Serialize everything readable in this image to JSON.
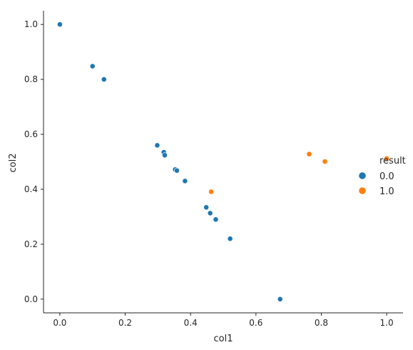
{
  "chart_data": {
    "type": "scatter",
    "title": "",
    "xlabel": "col1",
    "ylabel": "col2",
    "xlim": [
      -0.05,
      1.05
    ],
    "ylim": [
      -0.05,
      1.05
    ],
    "xticks": [
      "0.0",
      "0.2",
      "0.4",
      "0.6",
      "0.8",
      "1.0"
    ],
    "yticks": [
      "0.0",
      "0.2",
      "0.4",
      "0.6",
      "0.8",
      "1.0"
    ],
    "grid": false,
    "legend": {
      "title": "result",
      "position": "center-right"
    },
    "series": [
      {
        "name": "0.0",
        "color": "#1f77b4",
        "points": [
          [
            0.0,
            1.0
          ],
          [
            0.1,
            0.848
          ],
          [
            0.135,
            0.8
          ],
          [
            0.298,
            0.56
          ],
          [
            0.318,
            0.535
          ],
          [
            0.321,
            0.524
          ],
          [
            0.353,
            0.472
          ],
          [
            0.358,
            0.468
          ],
          [
            0.383,
            0.43
          ],
          [
            0.448,
            0.334
          ],
          [
            0.46,
            0.313
          ],
          [
            0.477,
            0.29
          ],
          [
            0.521,
            0.22
          ],
          [
            0.674,
            0.0
          ]
        ]
      },
      {
        "name": "1.0",
        "color": "#ff7f0e",
        "points": [
          [
            0.463,
            0.391
          ],
          [
            0.763,
            0.528
          ],
          [
            0.811,
            0.501
          ],
          [
            1.0,
            0.512
          ]
        ]
      }
    ]
  }
}
